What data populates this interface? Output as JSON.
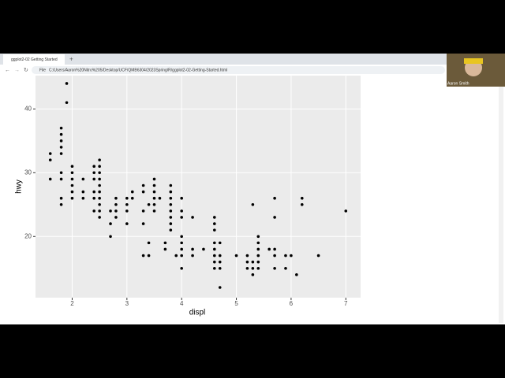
{
  "browser": {
    "tab_title": "ggplot2-02 Getting Started",
    "scheme": "File",
    "url": "C:/Users/Aaron%20Nitro%205/Desktop/UCF/QMB6304/2023Spring/R/ggplot2-02-Getting-Started.html"
  },
  "webcam": {
    "name": "Aaron Smith"
  },
  "chart_data": {
    "type": "scatter",
    "x_label": "displ",
    "y_label": "hwy",
    "xlim": [
      1.33,
      7.27
    ],
    "ylim": [
      10.4,
      45.6
    ],
    "xticks": [
      2,
      3,
      4,
      5,
      6,
      7
    ],
    "yticks": [
      20,
      30,
      40
    ],
    "grid": true,
    "series": [
      {
        "color": "#000000",
        "x": [
          1.6,
          1.6,
          1.6,
          1.8,
          1.8,
          1.8,
          1.8,
          1.8,
          1.8,
          1.8,
          1.8,
          1.8,
          1.9,
          1.9,
          2.0,
          2.0,
          2.0,
          2.0,
          2.0,
          2.0,
          2.2,
          2.2,
          2.2,
          2.4,
          2.4,
          2.4,
          2.4,
          2.4,
          2.4,
          2.5,
          2.5,
          2.5,
          2.5,
          2.5,
          2.5,
          2.5,
          2.5,
          2.5,
          2.5,
          2.7,
          2.7,
          2.7,
          2.8,
          2.8,
          2.8,
          2.8,
          3.0,
          3.0,
          3.0,
          3.0,
          3.1,
          3.1,
          3.3,
          3.3,
          3.3,
          3.3,
          3.3,
          3.4,
          3.4,
          3.4,
          3.5,
          3.5,
          3.5,
          3.5,
          3.5,
          3.5,
          3.6,
          3.7,
          3.7,
          3.8,
          3.8,
          3.8,
          3.8,
          3.8,
          3.8,
          3.8,
          3.8,
          3.9,
          4.0,
          4.0,
          4.0,
          4.0,
          4.0,
          4.0,
          4.0,
          4.0,
          4.2,
          4.2,
          4.2,
          4.4,
          4.6,
          4.6,
          4.6,
          4.6,
          4.6,
          4.6,
          4.6,
          4.6,
          4.7,
          4.7,
          4.7,
          4.7,
          4.7,
          5.0,
          5.2,
          5.2,
          5.2,
          5.3,
          5.3,
          5.3,
          5.3,
          5.4,
          5.4,
          5.4,
          5.4,
          5.4,
          5.4,
          5.6,
          5.7,
          5.7,
          5.7,
          5.7,
          5.7,
          5.9,
          5.9,
          6.0,
          6.1,
          6.2,
          6.2,
          6.5,
          7.0
        ],
        "values": [
          33,
          32,
          29,
          37,
          36,
          35,
          34,
          33,
          30,
          29,
          26,
          25,
          44,
          41,
          31,
          30,
          29,
          28,
          27,
          26,
          29,
          27,
          26,
          31,
          30,
          29,
          27,
          26,
          24,
          32,
          31,
          30,
          29,
          28,
          27,
          26,
          25,
          24,
          23,
          24,
          22,
          20,
          26,
          25,
          24,
          23,
          26,
          25,
          24,
          22,
          27,
          26,
          28,
          27,
          24,
          22,
          17,
          25,
          19,
          17,
          29,
          28,
          27,
          26,
          25,
          24,
          26,
          19,
          18,
          28,
          27,
          26,
          25,
          24,
          23,
          22,
          21,
          17,
          26,
          24,
          23,
          20,
          19,
          18,
          17,
          15,
          23,
          18,
          17,
          18,
          23,
          22,
          21,
          19,
          18,
          17,
          16,
          15,
          19,
          17,
          16,
          15,
          12,
          17,
          17,
          16,
          15,
          25,
          16,
          15,
          14,
          20,
          19,
          18,
          17,
          16,
          15,
          18,
          26,
          23,
          18,
          17,
          15,
          17,
          15,
          17,
          14,
          26,
          25,
          17,
          24
        ]
      }
    ]
  }
}
